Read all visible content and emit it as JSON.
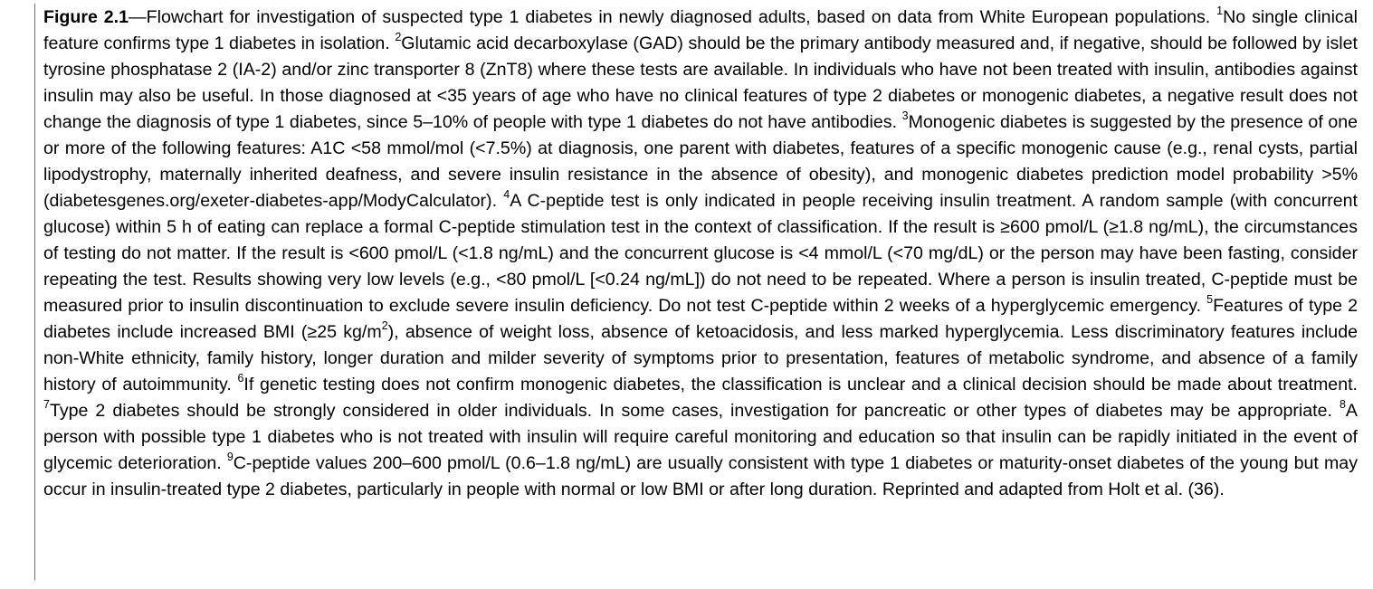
{
  "figure_label": "Figure 2.1",
  "caption_intro": "—Flowchart for investigation of suspected type 1 diabetes in newly diagnosed adults, based on data from White European populations.",
  "notes": [
    {
      "num": "1",
      "text": "No single clinical feature confirms type 1 diabetes in isolation."
    },
    {
      "num": "2",
      "text": "Glutamic acid decarboxylase (GAD) should be the primary antibody measured and, if negative, should be followed by islet tyrosine phosphatase 2 (IA-2) and/or zinc transporter 8 (ZnT8) where these tests are available. In indi­viduals who have not been treated with insulin, antibodies against insulin may also be useful. In those diagnosed at <35 years of age who have no clinical features of type 2 diabetes or monogenic diabetes, a negative result does not change the diagnosis of type 1 diabetes, since 5–10% of peo­ple with type 1 diabetes do not have antibodies."
    },
    {
      "num": "3",
      "text": "Monogenic diabetes is suggested by the presence of one or more of the following features: A1C <58 mmol/mol (<7.5%) at diagnosis, one parent with diabetes, features of a specific monogenic cause (e.g., renal cysts, partial lipodystrophy, maternally inherited deafness, and severe insulin resistance in the absence of obesity), and monogenic diabetes prediction model probability >5% (diabetesgenes.org/exeter-diabetes-app/ModyCalculator)."
    },
    {
      "num": "4",
      "text": "A C-peptide test is only indicated in people receiving insulin treatment. A random sam­ple (with concurrent glucose) within 5 h of eating can replace a formal C-peptide stimulation test in the context of classification. If the result is ≥600 pmol/L (≥1.8 ng/mL), the circumstances of testing do not matter. If the result is <600 pmol/L (<1.8 ng/mL) and the concurrent glucose is <4 mmol/L (<70 mg/dL) or the person may have been fasting, consider repeating the test. Results showing very low levels (e.g., <80 pmol/L [<0.24 ng/mL]) do not need to be repeated. Where a person is insulin treated, C-peptide must be measured prior to insulin discontinuation to ex­clude severe insulin deficiency. Do not test C-peptide within 2 weeks of a hyperglycemic emergency."
    },
    {
      "num": "5",
      "text_before": "Features of type 2 diabetes include increased BMI (≥25 kg/m",
      "superscript": "2",
      "text_after": "), absence of weight loss, absence of ketoacidosis, and less marked hyperglycemia. Less discriminatory features include non-White ethnicity, family history, longer duration and milder severity of symptoms prior to presentation, features of metabolic syndrome, and absence of a family history of autoimmunity."
    },
    {
      "num": "6",
      "text": "If genetic testing does not confirm monogenic diabetes, the classification is unclear and a clinical decision should be made about treatment."
    },
    {
      "num": "7",
      "text": "Type 2 diabetes should be strongly considered in older individuals. In some cases, investigation for pancreatic or other types of diabetes may be appropriate."
    },
    {
      "num": "8",
      "text": "A person with possible type 1 diabetes who is not treated with insulin will require careful monitoring and education so that insulin can be rapidly initiated in the event of glycemic deterioration."
    },
    {
      "num": "9",
      "text": "C-peptide values 200–600 pmol/L (0.6–1.8 ng/mL) are usually consistent with type 1 diabetes or maturity-onset diabetes of the young but may occur in insulin-treated type 2 diabetes, particularly in people with normal or low BMI or after long duration."
    }
  ],
  "reprint_note": "Reprinted and adapted from Holt et al. (36)."
}
